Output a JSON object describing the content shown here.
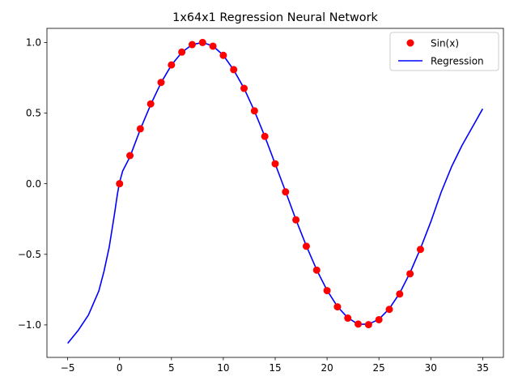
{
  "chart_data": {
    "type": "line",
    "title": "1x64x1 Regression Neural Network",
    "xlabel": "",
    "ylabel": "",
    "xlim": [
      -7,
      37
    ],
    "ylim": [
      -1.23,
      1.1
    ],
    "xticks": [
      -5,
      0,
      5,
      10,
      15,
      20,
      25,
      30,
      35
    ],
    "yticks": [
      -1.0,
      -0.5,
      0.0,
      0.5,
      1.0
    ],
    "xtick_labels": [
      "−5",
      "0",
      "5",
      "10",
      "15",
      "20",
      "25",
      "30",
      "35"
    ],
    "ytick_labels": [
      "−1.0",
      "−0.5",
      "0.0",
      "0.5",
      "1.0"
    ],
    "grid": false,
    "legend_position": "top-right",
    "series": [
      {
        "name": "Sin(x)",
        "kind": "scatter",
        "color": "#ff0000",
        "x": [
          0,
          1,
          2,
          3,
          4,
          5,
          6,
          7,
          8,
          9,
          10,
          11,
          12,
          13,
          14,
          15,
          16,
          17,
          18,
          19,
          20,
          21,
          22,
          23,
          24,
          25,
          26,
          27,
          28,
          29
        ],
        "y": [
          0.0,
          0.199,
          0.389,
          0.565,
          0.717,
          0.841,
          0.932,
          0.985,
          1.0,
          0.974,
          0.909,
          0.808,
          0.675,
          0.516,
          0.335,
          0.141,
          -0.058,
          -0.256,
          -0.443,
          -0.612,
          -0.757,
          -0.872,
          -0.952,
          -0.994,
          -0.998,
          -0.963,
          -0.89,
          -0.781,
          -0.638,
          -0.465
        ]
      },
      {
        "name": "Regression",
        "kind": "line",
        "color": "#0000ff",
        "x": [
          -5,
          -4,
          -3,
          -2,
          -1.5,
          -1,
          -0.5,
          -0.2,
          0,
          0.3,
          1,
          2,
          3,
          4,
          5,
          6,
          7,
          8,
          9,
          10,
          11,
          12,
          13,
          14,
          15,
          16,
          17,
          18,
          19,
          20,
          21,
          22,
          23,
          24,
          25,
          26,
          27,
          28,
          29,
          30,
          31,
          32,
          33,
          34,
          35
        ],
        "y": [
          -1.13,
          -1.04,
          -0.93,
          -0.76,
          -0.62,
          -0.45,
          -0.22,
          -0.07,
          0.01,
          0.09,
          0.19,
          0.385,
          0.56,
          0.715,
          0.84,
          0.93,
          0.985,
          1.0,
          0.975,
          0.91,
          0.805,
          0.675,
          0.515,
          0.335,
          0.14,
          -0.055,
          -0.255,
          -0.44,
          -0.61,
          -0.755,
          -0.87,
          -0.95,
          -0.995,
          -0.995,
          -0.96,
          -0.885,
          -0.775,
          -0.63,
          -0.46,
          -0.27,
          -0.06,
          0.12,
          0.27,
          0.4,
          0.53
        ]
      }
    ]
  }
}
